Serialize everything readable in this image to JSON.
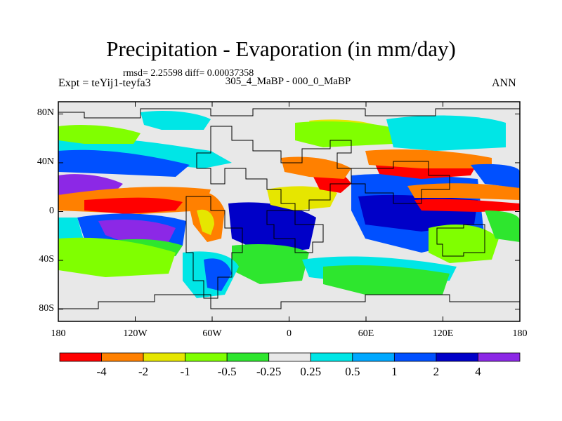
{
  "title": "Precipitation - Evaporation (in mm/day)",
  "stats": "rmsd= 2.25598 diff= 0.00037358",
  "experiment": "Expt = teYij1-teyfa3",
  "period": "305_4_MaBP - 000_0_MaBP",
  "season": "ANN",
  "axes": {
    "lon_ticks": [
      {
        "value": -180,
        "label": "180"
      },
      {
        "value": -120,
        "label": "120W"
      },
      {
        "value": -60,
        "label": "60W"
      },
      {
        "value": 0,
        "label": "0"
      },
      {
        "value": 60,
        "label": "60E"
      },
      {
        "value": 120,
        "label": "120E"
      },
      {
        "value": 180,
        "label": "180"
      }
    ],
    "lat_ticks": [
      {
        "value": 80,
        "label": "80N"
      },
      {
        "value": 40,
        "label": "40N"
      },
      {
        "value": 0,
        "label": "0"
      },
      {
        "value": -40,
        "label": "40S"
      },
      {
        "value": -80,
        "label": "80S"
      }
    ],
    "lon_range": [
      -180,
      180
    ],
    "lat_range": [
      -90,
      90
    ]
  },
  "colorbar": {
    "colors": [
      "#ff0000",
      "#ff8000",
      "#e6e600",
      "#80ff00",
      "#2ee62e",
      "#e8e8e8",
      "#00e6e6",
      "#00a8ff",
      "#0050ff",
      "#0000c8",
      "#8c28e6"
    ],
    "labels": [
      "-4",
      "-2",
      "-1",
      "-0.5",
      "-0.25",
      "0.25",
      "0.5",
      "1",
      "2",
      "4"
    ]
  },
  "colors": {
    "coastline": "#000000",
    "frame": "#000000"
  }
}
